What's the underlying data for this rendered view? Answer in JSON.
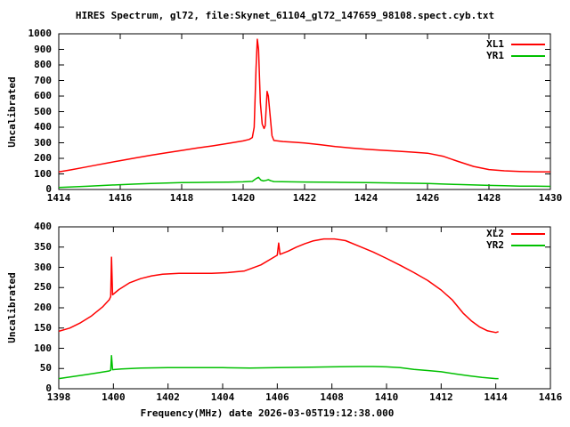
{
  "title": "HIRES Spectrum, gl72, file:Skynet_61104_gl72_147659_98108.spect.cyb.txt",
  "xlabel": "Frequency(MHz) date 2026-03-05T19:12:38.000",
  "colors": {
    "background": "#ffffff",
    "axis": "#000000",
    "red_series": "#ff0000",
    "green_series": "#00c000"
  },
  "panels": [
    {
      "ylabel": "Uncalibrated"
    },
    {
      "ylabel": "Uncalibrated"
    }
  ],
  "chart_data": [
    {
      "type": "line",
      "panel": "top",
      "xlim": [
        1414,
        1430
      ],
      "ylim": [
        0,
        1000
      ],
      "x_ticks": [
        1414,
        1416,
        1418,
        1420,
        1422,
        1424,
        1426,
        1428,
        1430
      ],
      "y_ticks": [
        0,
        100,
        200,
        300,
        400,
        500,
        600,
        700,
        800,
        900,
        1000
      ],
      "grid": false,
      "legend_position": "top-right",
      "series": [
        {
          "name": "XL1",
          "color": "#ff0000",
          "points": [
            [
              1414.0,
              113
            ],
            [
              1414.4,
              126
            ],
            [
              1414.8,
              141
            ],
            [
              1415.2,
              156
            ],
            [
              1415.6,
              171
            ],
            [
              1416.0,
              185
            ],
            [
              1416.5,
              203
            ],
            [
              1417.0,
              220
            ],
            [
              1417.5,
              236
            ],
            [
              1418.0,
              251
            ],
            [
              1418.5,
              266
            ],
            [
              1419.0,
              280
            ],
            [
              1419.5,
              296
            ],
            [
              1420.0,
              312
            ],
            [
              1420.2,
              322
            ],
            [
              1420.3,
              334
            ],
            [
              1420.36,
              400
            ],
            [
              1420.42,
              780
            ],
            [
              1420.46,
              965
            ],
            [
              1420.5,
              900
            ],
            [
              1420.56,
              560
            ],
            [
              1420.62,
              420
            ],
            [
              1420.68,
              392
            ],
            [
              1420.72,
              410
            ],
            [
              1420.78,
              630
            ],
            [
              1420.82,
              600
            ],
            [
              1420.88,
              470
            ],
            [
              1420.94,
              345
            ],
            [
              1421.0,
              315
            ],
            [
              1421.3,
              308
            ],
            [
              1421.6,
              304
            ],
            [
              1422.0,
              299
            ],
            [
              1422.5,
              288
            ],
            [
              1423.0,
              276
            ],
            [
              1423.5,
              266
            ],
            [
              1424.0,
              258
            ],
            [
              1424.5,
              252
            ],
            [
              1425.0,
              246
            ],
            [
              1425.5,
              240
            ],
            [
              1426.0,
              233
            ],
            [
              1426.5,
              214
            ],
            [
              1427.0,
              180
            ],
            [
              1427.5,
              148
            ],
            [
              1428.0,
              128
            ],
            [
              1428.5,
              120
            ],
            [
              1429.0,
              116
            ],
            [
              1429.5,
              114
            ],
            [
              1430.0,
              113
            ]
          ]
        },
        {
          "name": "YR1",
          "color": "#00c000",
          "points": [
            [
              1414.0,
              13
            ],
            [
              1414.5,
              17
            ],
            [
              1415.0,
              21
            ],
            [
              1415.5,
              26
            ],
            [
              1416.0,
              31
            ],
            [
              1416.5,
              35
            ],
            [
              1417.0,
              39
            ],
            [
              1417.5,
              42
            ],
            [
              1418.0,
              44
            ],
            [
              1418.5,
              45
            ],
            [
              1419.0,
              46
            ],
            [
              1419.5,
              47
            ],
            [
              1420.0,
              49
            ],
            [
              1420.3,
              52
            ],
            [
              1420.42,
              70
            ],
            [
              1420.5,
              78
            ],
            [
              1420.58,
              60
            ],
            [
              1420.66,
              55
            ],
            [
              1420.74,
              58
            ],
            [
              1420.82,
              63
            ],
            [
              1420.9,
              56
            ],
            [
              1421.0,
              51
            ],
            [
              1421.5,
              49
            ],
            [
              1422.0,
              48
            ],
            [
              1423.0,
              46
            ],
            [
              1424.0,
              44
            ],
            [
              1425.0,
              42
            ],
            [
              1425.5,
              40
            ],
            [
              1426.0,
              38
            ],
            [
              1426.5,
              35
            ],
            [
              1427.0,
              32
            ],
            [
              1427.5,
              29
            ],
            [
              1428.0,
              26
            ],
            [
              1428.5,
              24
            ],
            [
              1429.0,
              22
            ],
            [
              1429.5,
              21
            ],
            [
              1430.0,
              20
            ]
          ]
        }
      ]
    },
    {
      "type": "line",
      "panel": "bottom",
      "xlim": [
        1398,
        1416
      ],
      "ylim": [
        0,
        400
      ],
      "x_ticks": [
        1398,
        1400,
        1402,
        1404,
        1406,
        1408,
        1410,
        1412,
        1414,
        1416
      ],
      "y_ticks": [
        0,
        50,
        100,
        150,
        200,
        250,
        300,
        350,
        400
      ],
      "grid": false,
      "legend_position": "top-right",
      "series": [
        {
          "name": "XL2",
          "color": "#ff0000",
          "points": [
            [
              1398.0,
              142
            ],
            [
              1398.4,
              150
            ],
            [
              1398.8,
              163
            ],
            [
              1399.2,
              180
            ],
            [
              1399.6,
              202
            ],
            [
              1399.85,
              220
            ],
            [
              1399.9,
              228
            ],
            [
              1399.93,
              325
            ],
            [
              1399.97,
              232
            ],
            [
              1400.2,
              245
            ],
            [
              1400.6,
              262
            ],
            [
              1401.0,
              272
            ],
            [
              1401.4,
              279
            ],
            [
              1401.8,
              283
            ],
            [
              1402.4,
              285
            ],
            [
              1403.0,
              285
            ],
            [
              1403.6,
              285
            ],
            [
              1404.2,
              287
            ],
            [
              1404.8,
              291
            ],
            [
              1405.0,
              296
            ],
            [
              1405.4,
              306
            ],
            [
              1405.8,
              322
            ],
            [
              1406.0,
              330
            ],
            [
              1406.05,
              360
            ],
            [
              1406.1,
              332
            ],
            [
              1406.4,
              340
            ],
            [
              1406.7,
              350
            ],
            [
              1407.0,
              358
            ],
            [
              1407.3,
              365
            ],
            [
              1407.7,
              370
            ],
            [
              1408.1,
              370
            ],
            [
              1408.5,
              366
            ],
            [
              1409.0,
              352
            ],
            [
              1409.5,
              338
            ],
            [
              1410.0,
              322
            ],
            [
              1410.5,
              305
            ],
            [
              1411.0,
              287
            ],
            [
              1411.5,
              268
            ],
            [
              1412.0,
              244
            ],
            [
              1412.4,
              220
            ],
            [
              1412.8,
              187
            ],
            [
              1413.1,
              168
            ],
            [
              1413.4,
              153
            ],
            [
              1413.7,
              143
            ],
            [
              1414.0,
              139
            ],
            [
              1414.1,
              141
            ]
          ]
        },
        {
          "name": "YR2",
          "color": "#00c000",
          "points": [
            [
              1398.0,
              25
            ],
            [
              1398.5,
              30
            ],
            [
              1399.0,
              35
            ],
            [
              1399.5,
              40
            ],
            [
              1399.85,
              44
            ],
            [
              1399.9,
              46
            ],
            [
              1399.93,
              82
            ],
            [
              1399.97,
              47
            ],
            [
              1400.3,
              49
            ],
            [
              1401.0,
              51
            ],
            [
              1402.0,
              52
            ],
            [
              1403.0,
              52
            ],
            [
              1404.0,
              52
            ],
            [
              1405.0,
              51
            ],
            [
              1406.0,
              52
            ],
            [
              1407.0,
              53
            ],
            [
              1408.0,
              54
            ],
            [
              1409.0,
              55
            ],
            [
              1409.5,
              55
            ],
            [
              1410.0,
              54
            ],
            [
              1410.5,
              52
            ],
            [
              1411.0,
              48
            ],
            [
              1411.5,
              45
            ],
            [
              1412.0,
              42
            ],
            [
              1412.5,
              37
            ],
            [
              1413.0,
              32
            ],
            [
              1413.5,
              28
            ],
            [
              1414.0,
              25
            ],
            [
              1414.1,
              25
            ]
          ]
        }
      ]
    }
  ]
}
